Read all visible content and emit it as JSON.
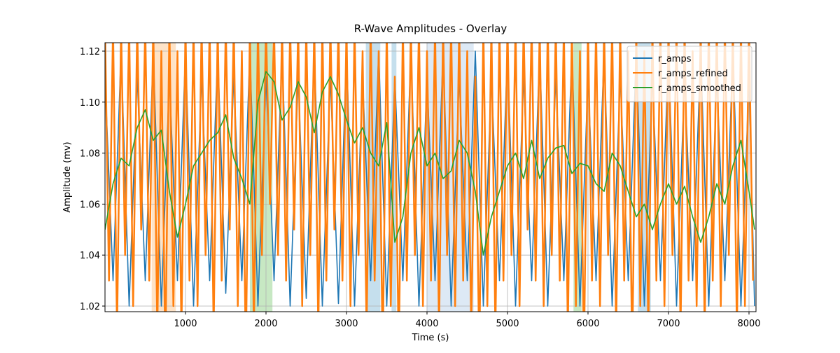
{
  "chart_data": {
    "type": "line",
    "title": "R-Wave Amplitudes - Overlay",
    "x_label": "Time (s)",
    "y_label": "Amplitude (mv)",
    "xlim": [
      0,
      8087
    ],
    "ylim": [
      1.0178,
      1.1233
    ],
    "xticks": [
      1000,
      2000,
      3000,
      4000,
      5000,
      6000,
      7000,
      8000
    ],
    "yticks": [
      1.02,
      1.04,
      1.06,
      1.08,
      {
        "value": 1.1,
        "label": "1.10"
      },
      {
        "value": 1.12,
        "label": "1.12"
      }
    ],
    "grid": true,
    "legend": "upper right",
    "spans": [
      {
        "start": 580,
        "end": 880,
        "color": "#fdd0a2"
      },
      {
        "start": 1800,
        "end": 2080,
        "color": "#a1d99b"
      },
      {
        "start": 3240,
        "end": 3420,
        "color": "#9ecae1"
      },
      {
        "start": 3560,
        "end": 3620,
        "color": "#9ecae1"
      },
      {
        "start": 4000,
        "end": 4580,
        "color": "#c6dbef"
      },
      {
        "start": 5820,
        "end": 5920,
        "color": "#a1d99b"
      },
      {
        "start": 6620,
        "end": 6780,
        "color": "#9ecae1"
      }
    ],
    "x": [
      0,
      100,
      200,
      300,
      400,
      500,
      600,
      700,
      800,
      900,
      1000,
      1100,
      1200,
      1300,
      1400,
      1500,
      1600,
      1700,
      1800,
      1900,
      2000,
      2100,
      2200,
      2300,
      2400,
      2500,
      2600,
      2700,
      2800,
      2900,
      3000,
      3100,
      3200,
      3300,
      3400,
      3500,
      3600,
      3700,
      3800,
      3900,
      4000,
      4100,
      4200,
      4300,
      4400,
      4500,
      4600,
      4700,
      4800,
      4900,
      5000,
      5100,
      5200,
      5300,
      5400,
      5500,
      5600,
      5700,
      5800,
      5900,
      6000,
      6100,
      6200,
      6300,
      6400,
      6500,
      6600,
      6700,
      6800,
      6900,
      7000,
      7100,
      7200,
      7300,
      7400,
      7500,
      7600,
      7700,
      7800,
      7900,
      8000,
      8070
    ],
    "series": [
      {
        "name": "r_amps",
        "color": "#1f77b4",
        "values": [
          1.11,
          1.03,
          1.12,
          1.02,
          1.11,
          1.03,
          1.12,
          1.02,
          1.11,
          1.03,
          1.12,
          1.02,
          1.11,
          1.03,
          1.12,
          1.025,
          1.11,
          1.03,
          1.12,
          1.02,
          1.11,
          1.03,
          1.12,
          1.02,
          1.11,
          1.023,
          1.12,
          1.02,
          1.11,
          1.021,
          1.12,
          1.02,
          1.11,
          1.03,
          1.12,
          1.02,
          1.11,
          1.03,
          1.12,
          1.02,
          1.11,
          1.03,
          1.12,
          1.02,
          1.11,
          1.03,
          1.12,
          1.02,
          1.11,
          1.03,
          1.12,
          1.02,
          1.11,
          1.03,
          1.12,
          1.02,
          1.11,
          1.03,
          1.12,
          1.02,
          1.11,
          1.03,
          1.12,
          1.02,
          1.11,
          1.03,
          1.12,
          1.02,
          1.11,
          1.03,
          1.12,
          1.02,
          1.11,
          1.03,
          1.12,
          1.02,
          1.11,
          1.03,
          1.12,
          1.02,
          1.11,
          1.02
        ]
      },
      {
        "name": "r_amps_refined",
        "color": "#ff7f0e",
        "x": [
          0,
          50,
          100,
          150,
          200,
          250,
          300,
          350,
          400,
          450,
          500,
          550,
          600,
          650,
          700,
          750,
          800,
          850,
          900,
          950,
          1000,
          1050,
          1100,
          1150,
          1200,
          1250,
          1300,
          1350,
          1400,
          1450,
          1500,
          1550,
          1600,
          1650,
          1700,
          1750,
          1800,
          1850,
          1900,
          1950,
          2000,
          2050,
          2100,
          2150,
          2200,
          2250,
          2300,
          2350,
          2400,
          2450,
          2500,
          2550,
          2600,
          2650,
          2700,
          2750,
          2800,
          2850,
          2900,
          2950,
          3000,
          3050,
          3100,
          3150,
          3200,
          3250,
          3300,
          3350,
          3400,
          3450,
          3500,
          3550,
          3600,
          3650,
          3700,
          3750,
          3800,
          3850,
          3900,
          3950,
          4000,
          4050,
          4100,
          4150,
          4200,
          4250,
          4300,
          4350,
          4400,
          4450,
          4500,
          4550,
          4600,
          4650,
          4700,
          4750,
          4800,
          4850,
          4900,
          4950,
          5000,
          5050,
          5100,
          5150,
          5200,
          5250,
          5300,
          5350,
          5400,
          5450,
          5500,
          5550,
          5600,
          5650,
          5700,
          5750,
          5800,
          5850,
          5900,
          5950,
          6000,
          6050,
          6100,
          6150,
          6200,
          6250,
          6300,
          6350,
          6400,
          6450,
          6500,
          6550,
          6600,
          6650,
          6700,
          6750,
          6800,
          6850,
          6900,
          6950,
          7000,
          7050,
          7100,
          7150,
          7200,
          7250,
          7300,
          7350,
          7400,
          7450,
          7500,
          7550,
          7600,
          7650,
          7700,
          7750,
          7800,
          7850,
          7900,
          7950,
          8000,
          8050
        ],
        "values": [
          1.13,
          1.03,
          1.13,
          1.01,
          1.13,
          1.04,
          1.13,
          1.02,
          1.13,
          1.05,
          1.13,
          1.03,
          1.13,
          1.01,
          1.12,
          1.0,
          1.13,
          1.02,
          1.12,
          1.01,
          1.13,
          1.03,
          1.13,
          1.02,
          1.13,
          1.04,
          1.13,
          1.01,
          1.13,
          1.03,
          1.13,
          1.05,
          1.13,
          1.02,
          1.12,
          1.0,
          1.13,
          1.01,
          1.13,
          1.04,
          1.13,
          1.06,
          1.13,
          1.04,
          1.13,
          1.03,
          1.13,
          1.05,
          1.13,
          1.02,
          1.13,
          1.04,
          1.13,
          1.01,
          1.13,
          1.03,
          1.13,
          1.05,
          1.13,
          1.03,
          1.13,
          1.02,
          1.13,
          1.04,
          1.12,
          1.01,
          1.13,
          1.03,
          1.12,
          1.0,
          1.13,
          1.02,
          1.11,
          1.0,
          1.13,
          1.03,
          1.13,
          1.04,
          1.13,
          1.02,
          1.12,
          1.03,
          1.13,
          1.01,
          1.13,
          1.04,
          1.13,
          1.02,
          1.13,
          1.03,
          1.12,
          1.01,
          1.11,
          1.0,
          1.13,
          1.02,
          1.13,
          1.01,
          1.13,
          1.03,
          1.13,
          1.04,
          1.13,
          1.02,
          1.13,
          1.05,
          1.13,
          1.03,
          1.13,
          1.02,
          1.13,
          1.04,
          1.13,
          1.03,
          1.13,
          1.01,
          1.13,
          1.02,
          1.12,
          1.0,
          1.13,
          1.03,
          1.13,
          1.02,
          1.13,
          1.04,
          1.13,
          1.01,
          1.13,
          1.03,
          1.12,
          1.0,
          1.13,
          1.02,
          1.12,
          1.01,
          1.13,
          1.03,
          1.13,
          1.02,
          1.13,
          1.04,
          1.13,
          1.01,
          1.13,
          1.03,
          1.12,
          1.02,
          1.13,
          1.01,
          1.13,
          1.03,
          1.13,
          1.02,
          1.13,
          1.04,
          1.13,
          1.01,
          1.13,
          1.02,
          1.13,
          1.03
        ]
      },
      {
        "name": "r_amps_smoothed",
        "color": "#2ca02c",
        "values": [
          1.05,
          1.068,
          1.078,
          1.075,
          1.09,
          1.097,
          1.085,
          1.089,
          1.065,
          1.047,
          1.06,
          1.075,
          1.08,
          1.085,
          1.088,
          1.095,
          1.078,
          1.07,
          1.06,
          1.1,
          1.112,
          1.108,
          1.093,
          1.098,
          1.108,
          1.102,
          1.088,
          1.104,
          1.11,
          1.103,
          1.093,
          1.084,
          1.09,
          1.08,
          1.075,
          1.092,
          1.045,
          1.055,
          1.08,
          1.09,
          1.075,
          1.08,
          1.07,
          1.073,
          1.085,
          1.08,
          1.065,
          1.04,
          1.055,
          1.065,
          1.075,
          1.08,
          1.07,
          1.085,
          1.07,
          1.078,
          1.082,
          1.083,
          1.072,
          1.076,
          1.075,
          1.068,
          1.065,
          1.08,
          1.075,
          1.065,
          1.055,
          1.06,
          1.05,
          1.06,
          1.068,
          1.06,
          1.067,
          1.055,
          1.045,
          1.055,
          1.068,
          1.06,
          1.075,
          1.085,
          1.065,
          1.05
        ]
      }
    ]
  }
}
